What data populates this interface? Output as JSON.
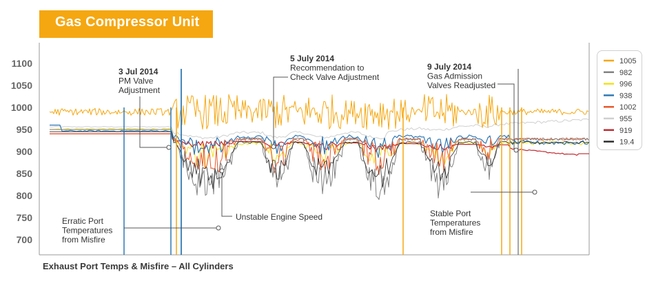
{
  "header": {
    "title": "Gas Compressor Unit"
  },
  "caption": "Exhaust Port Temps & Misfire – All Cylinders",
  "chart_data": {
    "type": "line",
    "title": "Gas Compressor Unit",
    "xlabel": "Exhaust Port Temps & Misfire – All Cylinders",
    "ylabel": "",
    "ylim": [
      660,
      1110
    ],
    "yticks": [
      700,
      750,
      800,
      850,
      900,
      950,
      1000,
      1050,
      1100
    ],
    "grid": false,
    "legend_position": "right",
    "series": [
      {
        "name": "1005",
        "color": "#f5a711"
      },
      {
        "name": "982",
        "color": "#808080"
      },
      {
        "name": "996",
        "color": "#f2e21a"
      },
      {
        "name": "938",
        "color": "#2f78b4"
      },
      {
        "name": "1002",
        "color": "#e8572a"
      },
      {
        "name": "955",
        "color": "#cfcfcf"
      },
      {
        "name": "919",
        "color": "#c0282e"
      },
      {
        "name": "19.4",
        "color": "#2b2b2b"
      }
    ],
    "annotations": [
      {
        "lines": [
          "3 Jul 2014",
          "PM Valve",
          "Adjustment"
        ]
      },
      {
        "lines": [
          "5 July 2014",
          "Recommendation to",
          "Check Valve Adjustment"
        ]
      },
      {
        "lines": [
          "9 July 2014",
          "Gas Admission",
          "Valves Readjusted"
        ]
      },
      {
        "lines": [
          "Erratic Port",
          "Temperatures",
          "from Misfire"
        ]
      },
      {
        "lines": [
          "Unstable Engine Speed"
        ]
      },
      {
        "lines": [
          "Stable Port",
          "Temperatures",
          "from Misfire"
        ]
      }
    ]
  }
}
